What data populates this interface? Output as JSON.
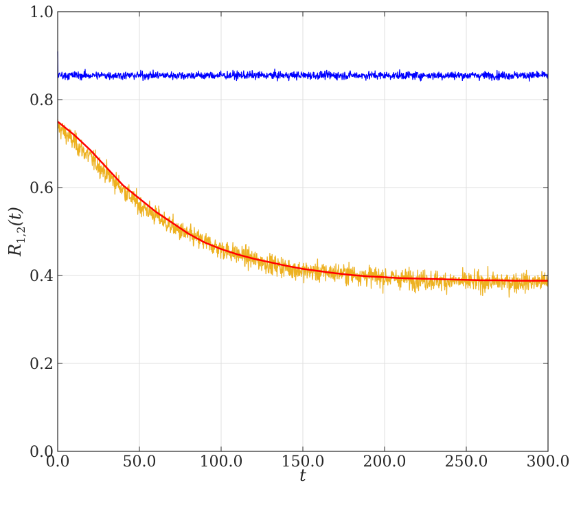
{
  "chart_data": {
    "type": "line",
    "title": "",
    "xlabel": "t",
    "ylabel": "R_{1,2}(t)",
    "ylabel_parts": {
      "base": "R",
      "sub": "1,2",
      "arg": "(t)"
    },
    "xlim": [
      0,
      300
    ],
    "ylim": [
      0,
      1
    ],
    "xticks": [
      0,
      50,
      100,
      150,
      200,
      250,
      300
    ],
    "xtick_labels": [
      "0.0",
      "50.0",
      "100.0",
      "150.0",
      "200.0",
      "250.0",
      "300.0"
    ],
    "yticks": [
      0,
      0.2,
      0.4,
      0.6,
      0.8,
      1.0
    ],
    "ytick_labels": [
      "0.0",
      "0.2",
      "0.4",
      "0.6",
      "0.8",
      "1.0"
    ],
    "grid": true,
    "legend": "none",
    "series": [
      {
        "color": "#0000ff",
        "style": "noisy",
        "mean": 0.855,
        "noise_amplitude": 0.02,
        "initial_value": 0.91,
        "x_range": [
          0,
          300
        ]
      },
      {
        "color": "#edb120",
        "style": "noisy",
        "noise_amplitude": 0.05,
        "x_range": [
          0,
          300
        ],
        "trend_x": [
          0,
          25,
          50,
          75,
          100,
          125,
          150,
          175,
          200,
          225,
          250,
          275,
          300
        ],
        "trend_y": [
          0.74,
          0.65,
          0.56,
          0.5,
          0.46,
          0.43,
          0.41,
          0.405,
          0.395,
          0.39,
          0.385,
          0.385,
          0.385
        ]
      },
      {
        "color": "#ff0000",
        "style": "smooth",
        "x": [
          0,
          10,
          20,
          30,
          40,
          50,
          60,
          70,
          80,
          90,
          100,
          110,
          120,
          130,
          140,
          150,
          160,
          170,
          180,
          190,
          200,
          210,
          220,
          230,
          240,
          250,
          260,
          270,
          280,
          290,
          300
        ],
        "y": [
          0.75,
          0.72,
          0.685,
          0.645,
          0.605,
          0.575,
          0.545,
          0.52,
          0.495,
          0.475,
          0.46,
          0.448,
          0.438,
          0.43,
          0.422,
          0.415,
          0.41,
          0.405,
          0.401,
          0.398,
          0.396,
          0.394,
          0.393,
          0.392,
          0.391,
          0.39,
          0.389,
          0.389,
          0.388,
          0.388,
          0.388
        ]
      }
    ]
  }
}
